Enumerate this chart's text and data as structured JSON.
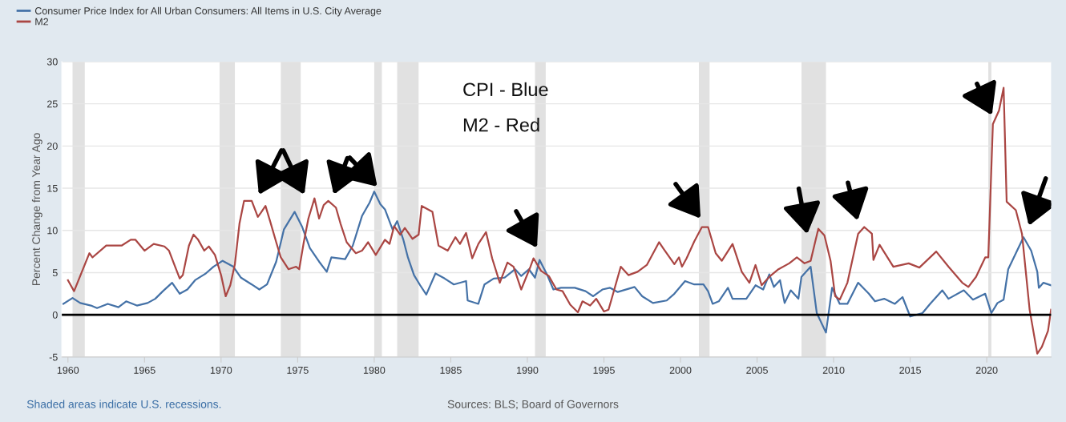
{
  "chart_data": {
    "type": "line",
    "ylabel": "Percent Change from Year Ago",
    "xlim": [
      1959.6,
      2024.2
    ],
    "xticks": [
      1960,
      1965,
      1970,
      1975,
      1980,
      1985,
      1990,
      1995,
      2000,
      2005,
      2010,
      2015,
      2020
    ],
    "ylim": [
      -5,
      30
    ],
    "yticks": [
      -5,
      0,
      5,
      10,
      15,
      20,
      25,
      30
    ],
    "grid": "y",
    "legend": "top left",
    "series": [
      {
        "name": "Consumer Price Index for All Urban Consumers: All Items in U.S. City Average",
        "color": "#4572a7",
        "x": [
          1959.7,
          1960.3,
          1960.8,
          1961.5,
          1961.9,
          1962.6,
          1963.3,
          1963.8,
          1964.5,
          1965.2,
          1965.7,
          1966.2,
          1966.8,
          1967.3,
          1967.8,
          1968.3,
          1969.0,
          1969.5,
          1970.1,
          1970.8,
          1971.3,
          1972.0,
          1972.5,
          1973.0,
          1973.6,
          1974.1,
          1974.8,
          1975.3,
          1975.8,
          1976.4,
          1976.9,
          1977.2,
          1978.1,
          1978.6,
          1979.2,
          1979.7,
          1980.0,
          1980.4,
          1980.7,
          1981.2,
          1981.5,
          1981.9,
          1982.2,
          1982.6,
          1983.0,
          1983.4,
          1984.0,
          1984.6,
          1985.2,
          1986.0,
          1986.1,
          1986.8,
          1987.2,
          1987.8,
          1988.5,
          1989.2,
          1989.6,
          1990.1,
          1990.5,
          1990.8,
          1991.3,
          1991.7,
          1992.2,
          1993.1,
          1993.8,
          1994.3,
          1994.9,
          1995.4,
          1995.9,
          1997.0,
          1997.5,
          1998.2,
          1999.1,
          1999.6,
          2000.3,
          2000.9,
          2001.5,
          2001.8,
          2002.1,
          2002.5,
          2003.1,
          2003.4,
          2004.3,
          2004.9,
          2005.4,
          2005.8,
          2006.1,
          2006.5,
          2006.8,
          2007.2,
          2007.7,
          2007.9,
          2008.5,
          2008.9,
          2009.5,
          2009.9,
          2010.4,
          2010.9,
          2011.6,
          2012.3,
          2012.7,
          2013.3,
          2014.0,
          2014.5,
          2015.0,
          2015.8,
          2016.3,
          2017.1,
          2017.5,
          2018.5,
          2019.1,
          2019.9,
          2020.3,
          2020.7,
          2021.1,
          2021.4,
          2021.9,
          2022.4,
          2022.9,
          2023.3,
          2023.4,
          2023.7,
          2024.2
        ],
        "values": [
          1.3,
          2.0,
          1.4,
          1.1,
          0.8,
          1.3,
          0.9,
          1.6,
          1.1,
          1.4,
          1.9,
          2.8,
          3.8,
          2.5,
          3.0,
          4.1,
          4.9,
          5.7,
          6.4,
          5.7,
          4.4,
          3.6,
          3.0,
          3.6,
          6.3,
          10.1,
          12.2,
          10.4,
          7.9,
          6.3,
          5.1,
          6.8,
          6.6,
          8.2,
          11.7,
          13.3,
          14.6,
          13.1,
          12.5,
          10.1,
          11.1,
          8.9,
          6.8,
          4.7,
          3.5,
          2.4,
          4.9,
          4.3,
          3.6,
          4.0,
          1.7,
          1.3,
          3.6,
          4.3,
          4.4,
          5.4,
          4.6,
          5.4,
          4.4,
          6.5,
          4.7,
          3.0,
          3.2,
          3.2,
          2.8,
          2.2,
          3.0,
          3.2,
          2.7,
          3.3,
          2.2,
          1.4,
          1.7,
          2.5,
          4.0,
          3.6,
          3.6,
          2.8,
          1.3,
          1.6,
          3.2,
          1.9,
          1.9,
          3.5,
          3.0,
          4.8,
          3.3,
          4.1,
          1.4,
          2.9,
          1.9,
          4.5,
          5.7,
          0.2,
          -2.1,
          3.2,
          1.3,
          1.3,
          3.8,
          2.5,
          1.6,
          1.9,
          1.3,
          2.1,
          -0.2,
          0.2,
          1.3,
          2.9,
          1.9,
          2.9,
          1.8,
          2.5,
          0.2,
          1.4,
          1.8,
          5.4,
          7.3,
          9.2,
          7.6,
          5.1,
          3.2,
          3.8,
          3.5
        ]
      },
      {
        "name": "M2",
        "color": "#aa4643",
        "x": [
          1960.0,
          1960.4,
          1961.4,
          1961.6,
          1962.5,
          1963.5,
          1964.1,
          1964.4,
          1965.0,
          1965.6,
          1966.3,
          1966.6,
          1967.0,
          1967.3,
          1967.5,
          1967.9,
          1968.2,
          1968.5,
          1968.9,
          1969.2,
          1969.6,
          1970.0,
          1970.3,
          1970.6,
          1970.9,
          1971.2,
          1971.5,
          1972.0,
          1972.4,
          1972.6,
          1972.9,
          1973.2,
          1973.6,
          1973.9,
          1974.4,
          1974.9,
          1975.1,
          1975.4,
          1975.7,
          1976.1,
          1976.4,
          1976.7,
          1977.0,
          1977.5,
          1977.8,
          1978.2,
          1978.8,
          1979.2,
          1979.6,
          1980.1,
          1980.7,
          1981.0,
          1981.3,
          1981.7,
          1982.0,
          1982.5,
          1982.9,
          1983.1,
          1983.8,
          1984.2,
          1984.8,
          1985.3,
          1985.6,
          1986.0,
          1986.4,
          1986.8,
          1987.3,
          1987.7,
          1988.2,
          1988.7,
          1989.1,
          1989.6,
          1990.2,
          1990.4,
          1990.9,
          1991.4,
          1991.9,
          1992.3,
          1992.8,
          1993.3,
          1993.6,
          1994.1,
          1994.5,
          1995.0,
          1995.3,
          1995.6,
          1996.1,
          1996.6,
          1997.2,
          1997.8,
          1998.6,
          1998.9,
          1999.6,
          1999.9,
          2000.1,
          2000.4,
          2000.9,
          2001.4,
          2001.8,
          2002.3,
          2002.7,
          2003.4,
          2004.0,
          2004.5,
          2004.9,
          2005.3,
          2005.8,
          2006.4,
          2007.1,
          2007.6,
          2008.1,
          2008.5,
          2009.0,
          2009.4,
          2009.8,
          2010.1,
          2010.4,
          2010.9,
          2011.6,
          2012.0,
          2012.5,
          2012.6,
          2013.0,
          2013.9,
          2014.9,
          2015.6,
          2016.7,
          2017.5,
          2018.4,
          2018.8,
          2019.3,
          2019.9,
          2020.1,
          2020.4,
          2020.8,
          2021.1,
          2021.3,
          2021.9,
          2022.3,
          2022.8,
          2023.3,
          2023.6,
          2024.0,
          2024.2
        ],
        "values": [
          4.1,
          2.8,
          7.3,
          6.8,
          8.2,
          8.2,
          8.9,
          8.9,
          7.6,
          8.4,
          8.1,
          7.6,
          5.7,
          4.3,
          4.7,
          8.2,
          9.5,
          8.9,
          7.6,
          8.1,
          7.1,
          4.7,
          2.2,
          3.5,
          6.0,
          10.8,
          13.5,
          13.5,
          11.6,
          12.1,
          12.9,
          11.1,
          8.6,
          6.8,
          5.4,
          5.7,
          5.4,
          8.6,
          11.4,
          13.8,
          11.4,
          13.0,
          13.5,
          12.7,
          10.8,
          8.6,
          7.3,
          7.6,
          8.6,
          7.1,
          8.9,
          8.4,
          10.5,
          9.5,
          10.3,
          9.0,
          9.5,
          12.9,
          12.2,
          8.2,
          7.6,
          9.2,
          8.4,
          9.7,
          6.7,
          8.4,
          9.8,
          6.7,
          3.8,
          6.2,
          5.7,
          3.0,
          5.7,
          6.7,
          5.2,
          4.6,
          3.0,
          2.8,
          1.2,
          0.3,
          1.6,
          1.1,
          1.9,
          0.4,
          0.6,
          2.5,
          5.7,
          4.7,
          5.1,
          5.9,
          8.6,
          7.8,
          6.0,
          6.8,
          5.7,
          6.7,
          8.7,
          10.4,
          10.4,
          7.3,
          6.4,
          8.4,
          5.1,
          3.8,
          5.9,
          3.5,
          4.5,
          5.4,
          6.1,
          6.8,
          6.1,
          6.4,
          10.2,
          9.4,
          6.4,
          2.2,
          1.8,
          3.8,
          9.6,
          10.4,
          9.6,
          6.5,
          8.3,
          5.7,
          6.1,
          5.6,
          7.5,
          5.7,
          3.8,
          3.3,
          4.5,
          6.8,
          6.8,
          22.6,
          24.2,
          26.9,
          13.4,
          12.4,
          9.6,
          0.6,
          -4.6,
          -3.8,
          -1.9,
          0.6
        ]
      }
    ],
    "bands": [
      {
        "axis": "x",
        "from": 1960.3,
        "to": 1961.1,
        "color": "#e1e1e1"
      },
      {
        "axis": "x",
        "from": 1969.9,
        "to": 1970.9,
        "color": "#e1e1e1"
      },
      {
        "axis": "x",
        "from": 1973.9,
        "to": 1975.2,
        "color": "#e1e1e1"
      },
      {
        "axis": "x",
        "from": 1980.0,
        "to": 1980.5,
        "color": "#e1e1e1"
      },
      {
        "axis": "x",
        "from": 1981.5,
        "to": 1982.9,
        "color": "#e1e1e1"
      },
      {
        "axis": "x",
        "from": 1990.5,
        "to": 1991.2,
        "color": "#e1e1e1"
      },
      {
        "axis": "x",
        "from": 2001.2,
        "to": 2001.9,
        "color": "#e1e1e1"
      },
      {
        "axis": "x",
        "from": 2007.9,
        "to": 2009.5,
        "color": "#e1e1e1"
      },
      {
        "axis": "x",
        "from": 2020.1,
        "to": 2020.3,
        "color": "#e1e1e1"
      }
    ],
    "ref_lines": [
      {
        "axis": "y",
        "value": 0,
        "color": "#000000"
      }
    ],
    "annotations": [
      "CPI - Blue",
      "M2 - Red",
      "Shaded areas indicate U.S. recessions.",
      "Sources: BLS; Board of Governors"
    ]
  }
}
